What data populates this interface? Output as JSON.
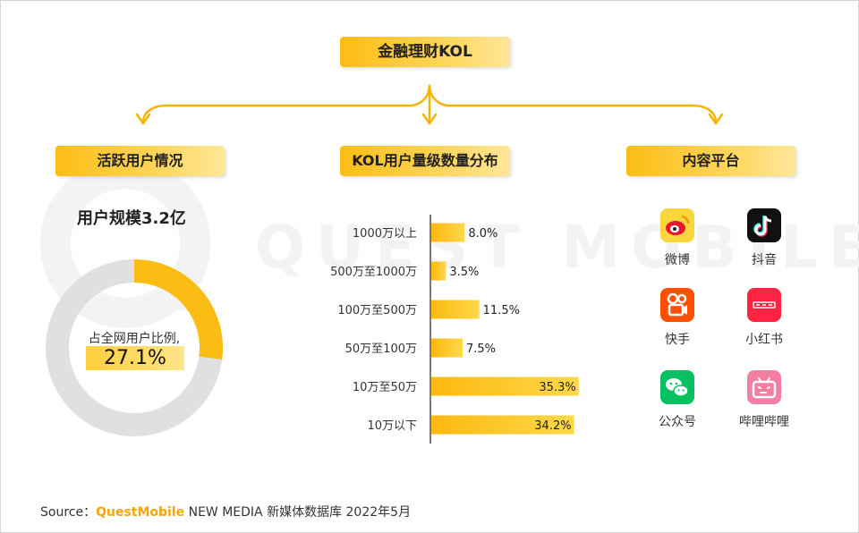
{
  "title": "金融理财KOL",
  "sections": {
    "active": "活跃用户情况",
    "distribution": "KOL用户量级数量分布",
    "platform": "内容平台"
  },
  "active_users": {
    "scale_label": "用户规模3.2亿",
    "share_label": "占全网用户比例,",
    "share_value": "27.1%",
    "share_fraction": 0.271
  },
  "watermark": "QUEST MOBILE",
  "platforms": [
    {
      "name": "微博",
      "icon": "weibo-icon",
      "color": "#f9d63a"
    },
    {
      "name": "抖音",
      "icon": "douyin-icon",
      "color": "#111111"
    },
    {
      "name": "快手",
      "icon": "kuaishou-icon",
      "color": "#ff5000"
    },
    {
      "name": "小红书",
      "icon": "xiaohongshu-icon",
      "color": "#ff2442"
    },
    {
      "name": "公众号",
      "icon": "wechat-icon",
      "color": "#07c160"
    },
    {
      "name": "哔哩哔哩",
      "icon": "bilibili-icon",
      "color": "#f27ea1"
    }
  ],
  "footer": {
    "source_label": "Source：",
    "brand": "QuestMobile",
    "rest": " NEW MEDIA 新媒体数据库  2022年5月"
  },
  "colors": {
    "accent": "#fbbd14",
    "track": "#e0e0e0"
  },
  "chart_data": [
    {
      "type": "pie",
      "categories": [
        "占全网用户比例"
      ],
      "values": [
        27.1
      ],
      "title": "用户规模3.2亿"
    },
    {
      "type": "bar",
      "orientation": "horizontal",
      "categories": [
        "1000万以上",
        "500万至1000万",
        "100万至500万",
        "50万至100万",
        "10万至50万",
        "10万以下"
      ],
      "values": [
        8.0,
        3.5,
        11.5,
        7.5,
        35.3,
        34.2
      ],
      "labels": [
        "8.0%",
        "3.5%",
        "11.5%",
        "7.5%",
        "35.3%",
        "34.2%"
      ],
      "title": "KOL用户量级数量分布",
      "xlim": [
        0,
        36
      ]
    }
  ]
}
